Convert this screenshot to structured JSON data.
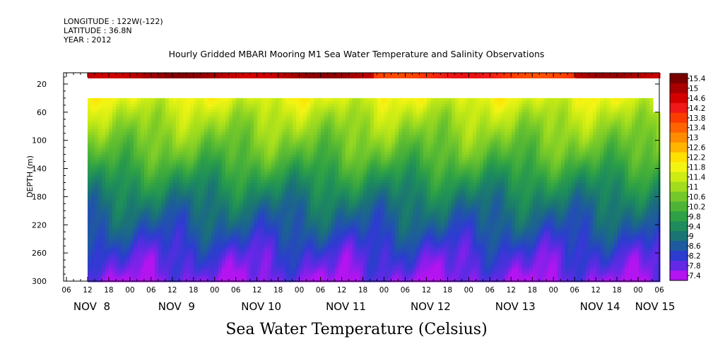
{
  "header": {
    "longitude": "LONGITUDE : 122W(-122)",
    "latitude": "LATITUDE : 36.8N",
    "year": "YEAR : 2012"
  },
  "chart_data": {
    "type": "heatmap",
    "title": "Hourly Gridded MBARI Mooring M1 Sea Water Temperature and Salinity Observations",
    "xlabel": "Sea Water Temperature (Celsius)",
    "ylabel": "DEPTH (m)",
    "x_axis": {
      "hour_ticks": [
        "06",
        "12",
        "18",
        "00",
        "06",
        "12",
        "18",
        "00",
        "06",
        "12",
        "18",
        "00",
        "06",
        "12",
        "18",
        "00",
        "06",
        "12",
        "18",
        "00",
        "06",
        "12",
        "18",
        "00",
        "06",
        "12",
        "18",
        "00",
        "06"
      ],
      "date_labels": [
        "NOV  8",
        "NOV  9",
        "NOV 10",
        "NOV 11",
        "NOV 12",
        "NOV 13",
        "NOV 14",
        "NOV 15"
      ],
      "range": [
        "2012-11-08 06:00",
        "2012-11-15 06:00"
      ],
      "data_start": "2012-11-08 12:00"
    },
    "y_axis": {
      "ticks": [
        20,
        60,
        100,
        140,
        180,
        220,
        260,
        300
      ],
      "range": [
        4,
        300
      ],
      "reversed": true
    },
    "colorbar": {
      "labels": [
        "15.4",
        "15",
        "14.6",
        "14.2",
        "13.8",
        "13.4",
        "13",
        "12.6",
        "12.2",
        "11.8",
        "11.4",
        "11",
        "10.6",
        "10.2",
        "9.8",
        "9.4",
        "9",
        "8.6",
        "8.2",
        "7.8",
        "7.4"
      ],
      "colors": [
        "#7a0000",
        "#a80000",
        "#d40000",
        "#f01818",
        "#fa3c00",
        "#ff6400",
        "#ff8c00",
        "#ffb400",
        "#ffe000",
        "#f4f414",
        "#ccec14",
        "#a2dc1e",
        "#74c82a",
        "#4eb436",
        "#2ea046",
        "#1e8c5c",
        "#1a7474",
        "#1e5aa0",
        "#2c3cd0",
        "#6428e6",
        "#b414f0"
      ],
      "vmin": 7.4,
      "vmax": 15.4
    },
    "depth_profile": {
      "depths": [
        4,
        35,
        40,
        60,
        80,
        100,
        120,
        140,
        160,
        180,
        200,
        220,
        240,
        260,
        280,
        300
      ],
      "temperatures": [
        14.6,
        null,
        11.6,
        11.2,
        10.9,
        10.6,
        10.3,
        9.9,
        9.5,
        9.15,
        8.85,
        8.6,
        8.3,
        8.0,
        7.8,
        7.5
      ]
    },
    "surface_trend_start": 15.0,
    "surface_trend_end": 14.8
  }
}
